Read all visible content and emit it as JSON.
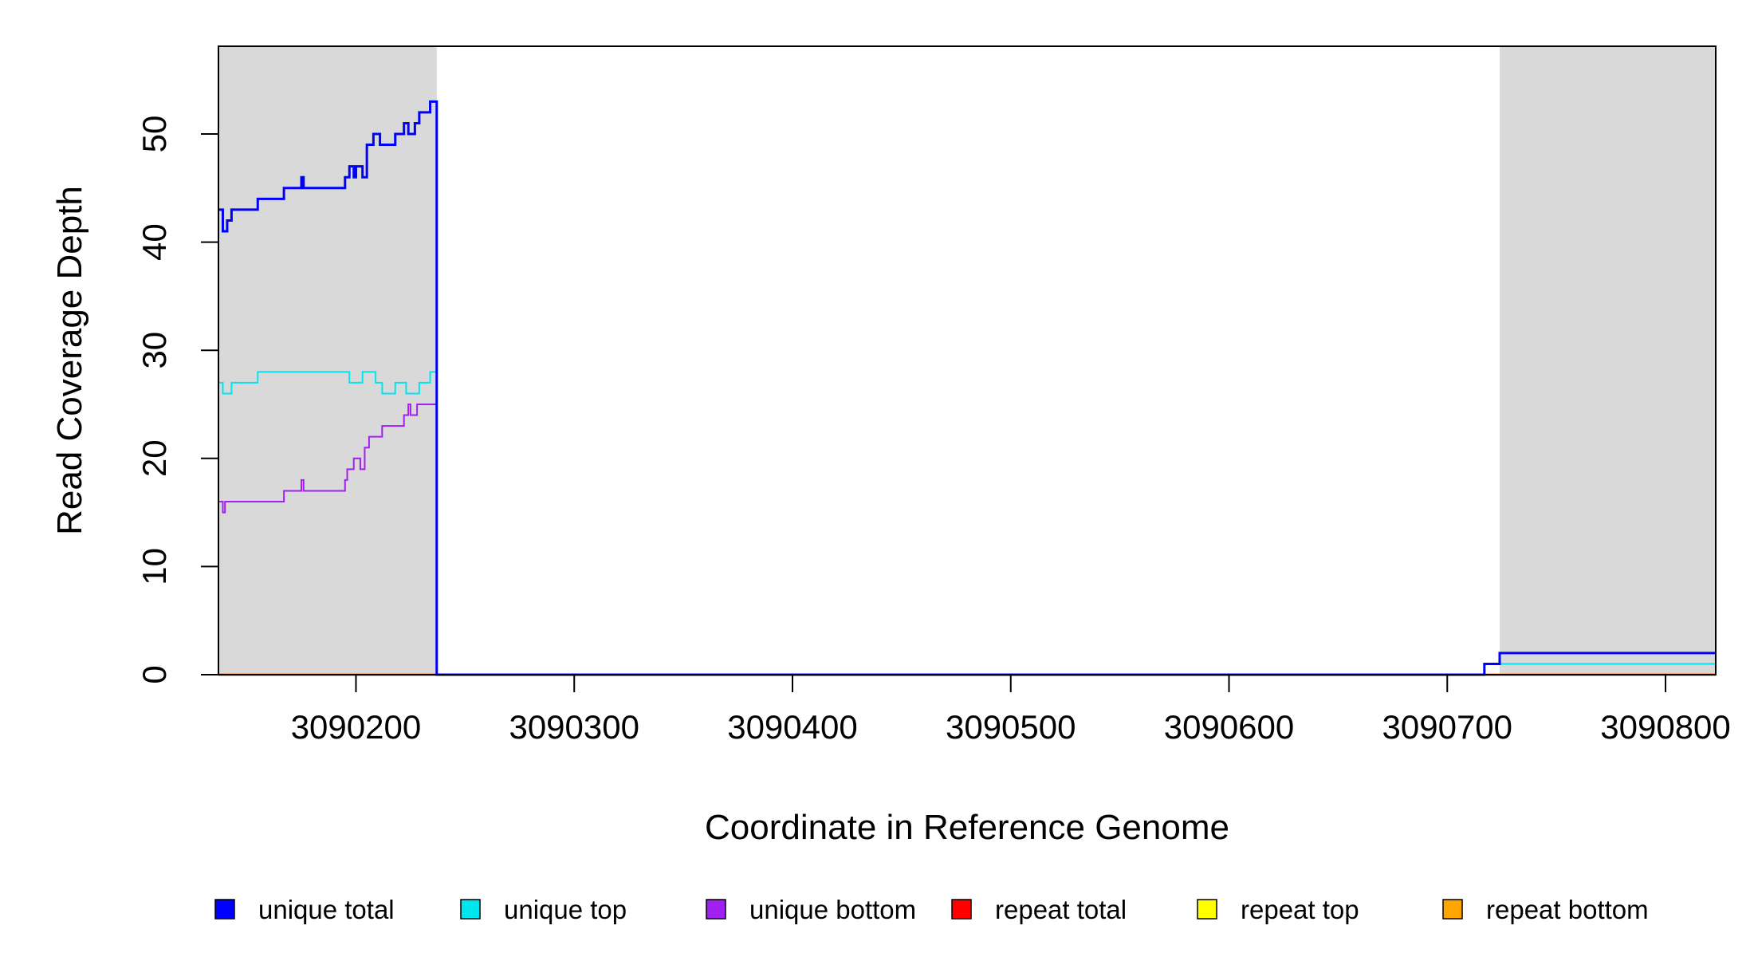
{
  "chart_data": {
    "type": "line",
    "title": "",
    "xlabel": "Coordinate in Reference Genome",
    "ylabel": "Read Coverage Depth",
    "xlim": [
      3090137,
      3090823
    ],
    "ylim": [
      0,
      58
    ],
    "x_ticks": [
      3090200,
      3090300,
      3090400,
      3090500,
      3090600,
      3090700,
      3090800
    ],
    "y_ticks": [
      0,
      10,
      20,
      30,
      40,
      50
    ],
    "grid": false,
    "legend_position": "bottom",
    "shaded_regions": [
      {
        "x_start": 3090137,
        "x_end": 3090237,
        "color": "#d9d9d9"
      },
      {
        "x_start": 3090724,
        "x_end": 3090823,
        "color": "#d9d9d9"
      }
    ],
    "series": [
      {
        "name": "unique total",
        "color": "#0000ff",
        "step": [
          [
            3090137,
            43
          ],
          [
            3090139,
            41
          ],
          [
            3090141,
            42
          ],
          [
            3090143,
            43
          ],
          [
            3090155,
            44
          ],
          [
            3090167,
            45
          ],
          [
            3090175,
            46
          ],
          [
            3090176,
            45
          ],
          [
            3090195,
            46
          ],
          [
            3090197,
            47
          ],
          [
            3090199,
            46
          ],
          [
            3090200,
            47
          ],
          [
            3090203,
            46
          ],
          [
            3090205,
            49
          ],
          [
            3090208,
            50
          ],
          [
            3090211,
            49
          ],
          [
            3090218,
            50
          ],
          [
            3090222,
            51
          ],
          [
            3090224,
            50
          ],
          [
            3090227,
            51
          ],
          [
            3090229,
            52
          ],
          [
            3090234,
            53
          ],
          [
            3090237,
            0
          ],
          [
            3090717,
            1
          ],
          [
            3090724,
            2
          ],
          [
            3090823,
            2
          ]
        ]
      },
      {
        "name": "unique top",
        "color": "#00e5ee",
        "step": [
          [
            3090137,
            27
          ],
          [
            3090139,
            26
          ],
          [
            3090143,
            27
          ],
          [
            3090155,
            28
          ],
          [
            3090197,
            27
          ],
          [
            3090203,
            28
          ],
          [
            3090209,
            27
          ],
          [
            3090212,
            26
          ],
          [
            3090218,
            27
          ],
          [
            3090223,
            26
          ],
          [
            3090229,
            27
          ],
          [
            3090234,
            28
          ],
          [
            3090237,
            0
          ],
          [
            3090717,
            1
          ],
          [
            3090724,
            1
          ],
          [
            3090823,
            1
          ]
        ]
      },
      {
        "name": "unique bottom",
        "color": "#a020f0",
        "step": [
          [
            3090137,
            16
          ],
          [
            3090139,
            15
          ],
          [
            3090140,
            16
          ],
          [
            3090167,
            17
          ],
          [
            3090175,
            18
          ],
          [
            3090176,
            17
          ],
          [
            3090195,
            18
          ],
          [
            3090196,
            19
          ],
          [
            3090199,
            20
          ],
          [
            3090202,
            19
          ],
          [
            3090204,
            21
          ],
          [
            3090206,
            22
          ],
          [
            3090212,
            23
          ],
          [
            3090222,
            24
          ],
          [
            3090224,
            25
          ],
          [
            3090225,
            24
          ],
          [
            3090228,
            25
          ],
          [
            3090237,
            0
          ],
          [
            3090717,
            1
          ],
          [
            3090724,
            1
          ],
          [
            3090823,
            1
          ]
        ]
      },
      {
        "name": "repeat total",
        "color": "#ff0000",
        "step": [
          [
            3090137,
            0
          ],
          [
            3090823,
            0
          ]
        ]
      },
      {
        "name": "repeat top",
        "color": "#ffff00",
        "step": [
          [
            3090137,
            0
          ],
          [
            3090823,
            0
          ]
        ]
      },
      {
        "name": "repeat bottom",
        "color": "#ffa500",
        "step": [
          [
            3090137,
            0
          ],
          [
            3090823,
            0
          ]
        ]
      }
    ]
  }
}
